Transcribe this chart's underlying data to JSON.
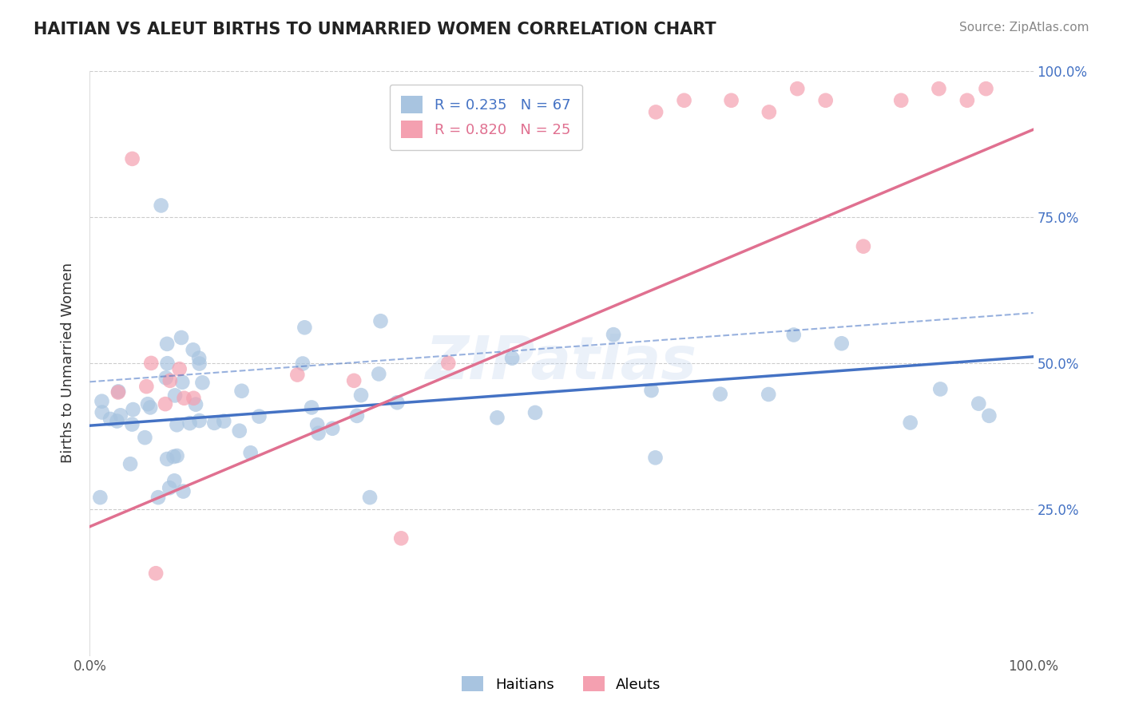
{
  "title": "HAITIAN VS ALEUT BIRTHS TO UNMARRIED WOMEN CORRELATION CHART",
  "source": "Source: ZipAtlas.com",
  "ylabel": "Births to Unmarried Women",
  "xlim": [
    0.0,
    1.0
  ],
  "ylim": [
    0.0,
    1.0
  ],
  "ytick_positions": [
    0.25,
    0.5,
    0.75,
    1.0
  ],
  "haitian_R": 0.235,
  "haitian_N": 67,
  "aleut_R": 0.82,
  "aleut_N": 25,
  "haitian_color": "#a8c4e0",
  "aleut_color": "#f4a0b0",
  "haitian_line_color": "#4472c4",
  "aleut_line_color": "#e07090",
  "background_color": "#ffffff",
  "grid_color": "#cccccc"
}
